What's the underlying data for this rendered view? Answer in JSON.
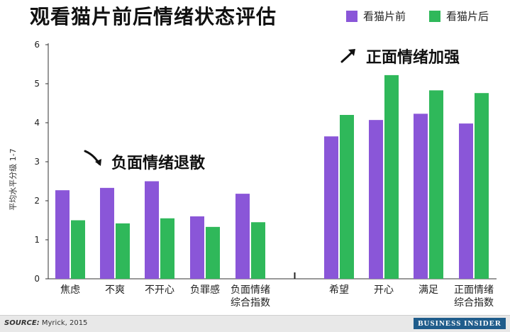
{
  "chart_data": {
    "type": "bar",
    "title": "观看猫片前后情绪状态评估",
    "ylabel": "平均水平分级 1-7",
    "ylim": [
      0,
      6
    ],
    "yticks": [
      0,
      1,
      2,
      3,
      4,
      5,
      6
    ],
    "grid": false,
    "legend_position": "top-right",
    "categories": [
      "焦虑",
      "不爽",
      "不开心",
      "负罪感",
      "负面情绪\n综合指数",
      "希望",
      "开心",
      "满足",
      "正面情绪\n综合指数"
    ],
    "series": [
      {
        "name": "看猫片前",
        "color": "#8a56d8",
        "values": [
          2.27,
          2.33,
          2.5,
          1.6,
          2.18,
          3.65,
          4.07,
          4.23,
          3.98
        ]
      },
      {
        "name": "看猫片后",
        "color": "#2fb85a",
        "values": [
          1.5,
          1.42,
          1.55,
          1.33,
          1.45,
          4.2,
          5.22,
          4.83,
          4.76
        ]
      }
    ],
    "annotations": [
      {
        "text": "负面情绪退散"
      },
      {
        "text": "正面情绪加强"
      }
    ]
  },
  "footer": {
    "source_label": "SOURCE:",
    "source_value": "Myrick, 2015",
    "brand": "BUSINESS INSIDER"
  }
}
